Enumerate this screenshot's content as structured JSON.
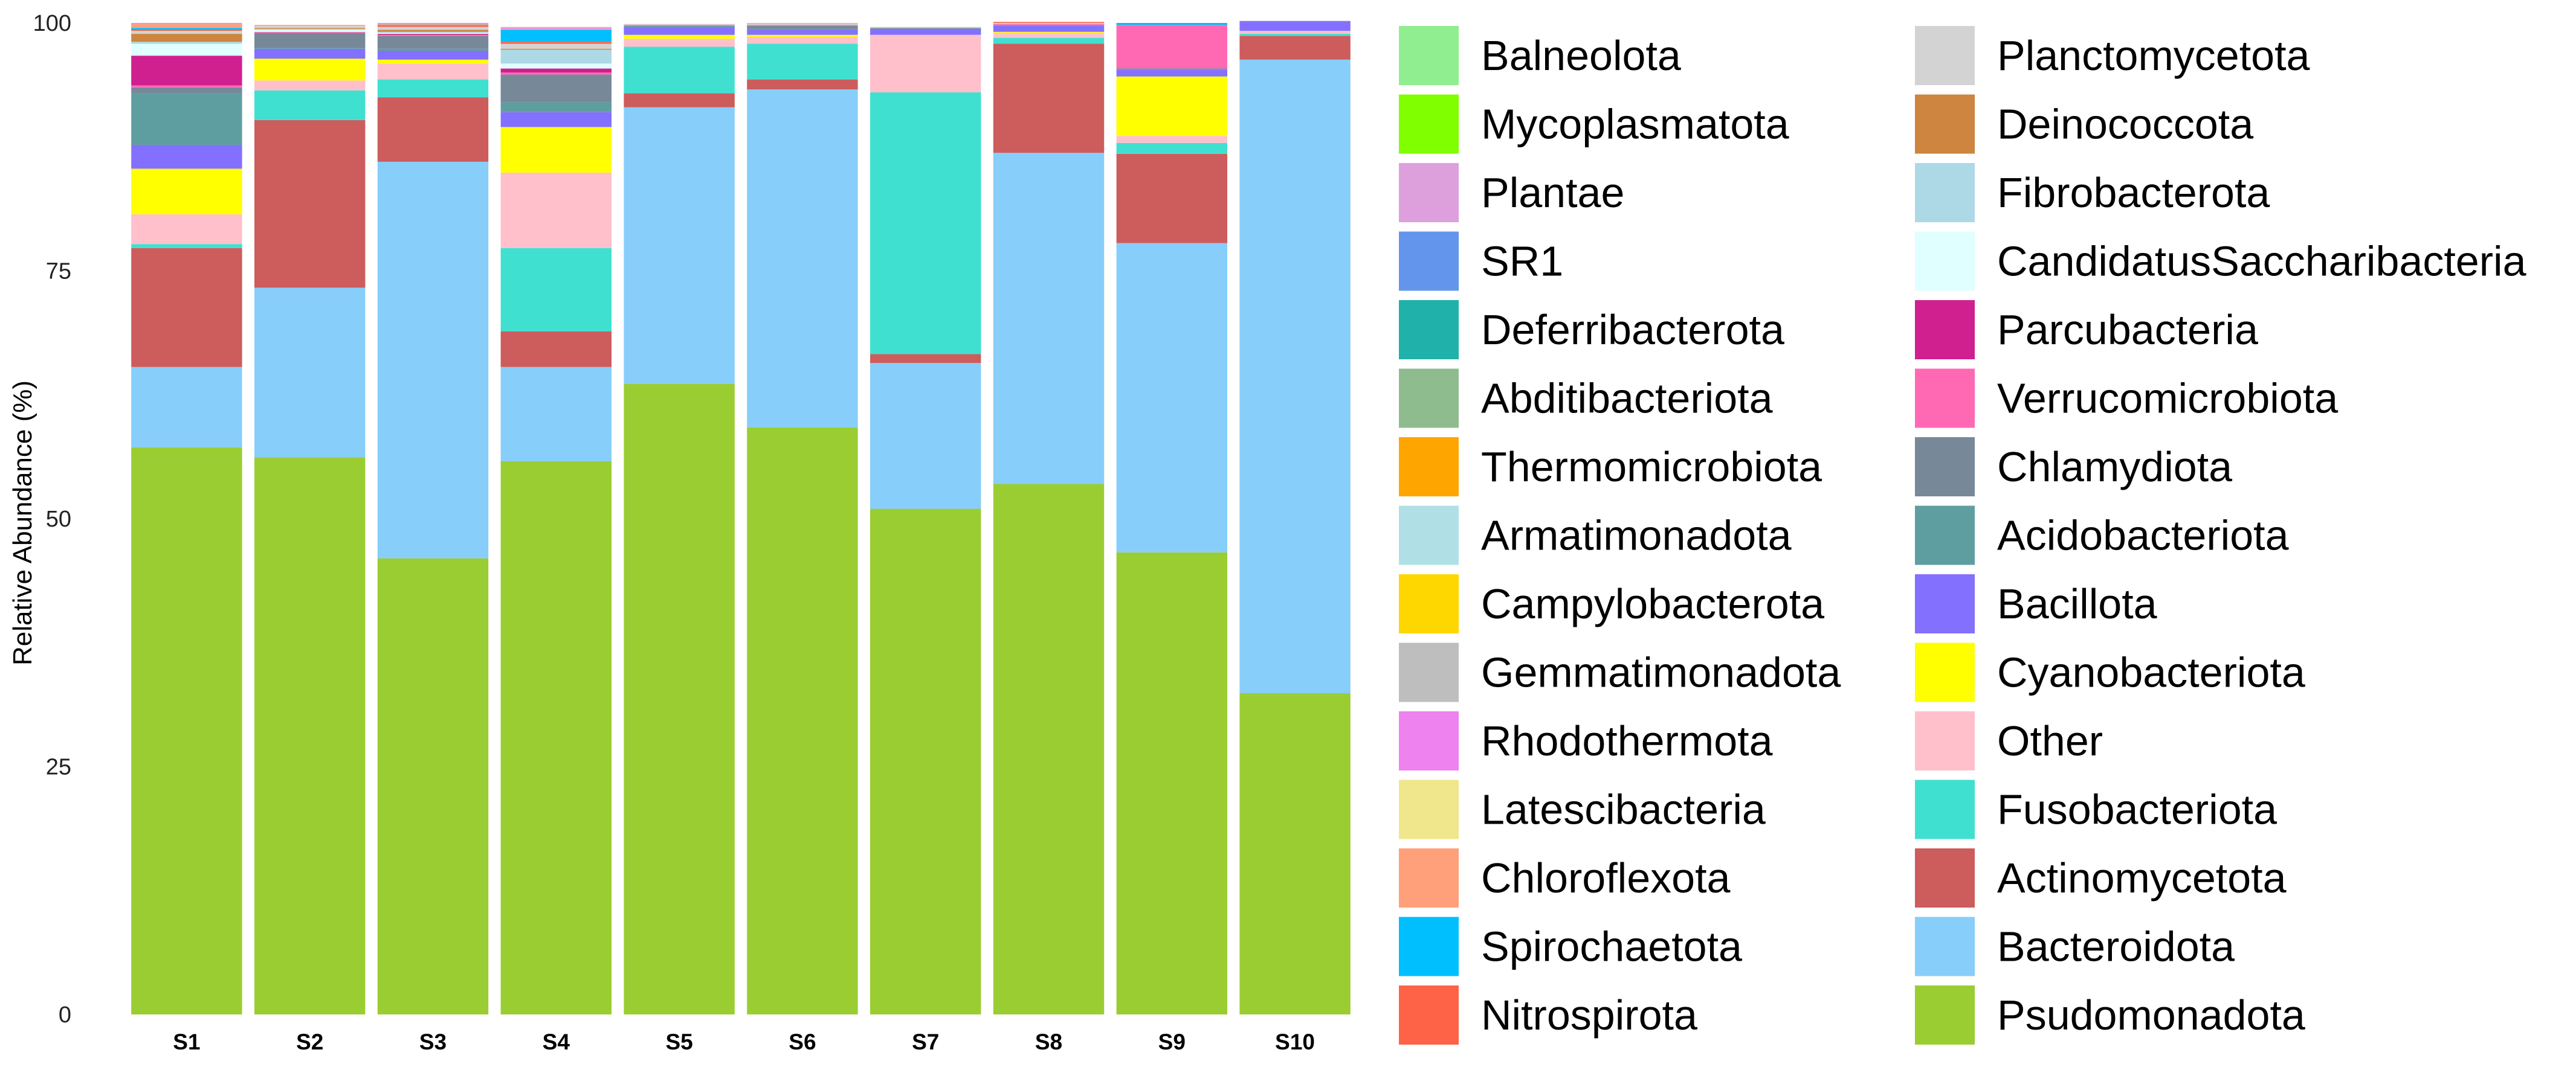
{
  "chart_data": {
    "type": "bar",
    "stacked": true,
    "title": "",
    "xlabel": "",
    "ylabel": "Relative Abundance (%)",
    "ylim": [
      0,
      100
    ],
    "yticks": [
      0,
      25,
      50,
      75,
      100
    ],
    "grid": false,
    "legend_position": "right",
    "categories": [
      "S1",
      "S2",
      "S3",
      "S4",
      "S5",
      "S6",
      "S7",
      "S8",
      "S9",
      "S10"
    ],
    "series": [
      {
        "name": "Psudomonadota",
        "color": "#9ACD32",
        "values": [
          57.2,
          56.2,
          46.0,
          55.8,
          63.6,
          59.2,
          51.0,
          53.5,
          46.6,
          32.4
        ]
      },
      {
        "name": "Bacteroidota",
        "color": "#87CEFA",
        "values": [
          8.1,
          17.1,
          40.0,
          9.5,
          27.9,
          34.1,
          14.7,
          33.4,
          31.2,
          63.9
        ]
      },
      {
        "name": "Actinomycetota",
        "color": "#CD5C5C",
        "values": [
          12.0,
          16.9,
          6.5,
          3.6,
          1.4,
          1.0,
          0.9,
          11.0,
          9.0,
          2.4
        ]
      },
      {
        "name": "Fusobacteriota",
        "color": "#40E0D0",
        "values": [
          0.4,
          3.0,
          1.8,
          8.4,
          4.7,
          3.6,
          26.4,
          0.6,
          1.1,
          0.2
        ]
      },
      {
        "name": "Other",
        "color": "#FFC0CB",
        "values": [
          3.0,
          1.0,
          1.6,
          7.6,
          0.8,
          0.7,
          5.8,
          0.5,
          0.7,
          0.3
        ]
      },
      {
        "name": "Cyanobacteriota",
        "color": "#FFFF00",
        "values": [
          4.6,
          2.2,
          0.4,
          4.6,
          0.4,
          0.2,
          0.0,
          0.1,
          6.0,
          0.0
        ]
      },
      {
        "name": "Bacillota",
        "color": "#8470FF",
        "values": [
          2.4,
          1.0,
          0.9,
          1.5,
          0.8,
          0.5,
          0.6,
          0.6,
          0.7,
          1.0
        ]
      },
      {
        "name": "Acidobacteriota",
        "color": "#5F9EA0",
        "values": [
          5.2,
          0.1,
          0.2,
          1.0,
          0.1,
          0.1,
          0.0,
          0.1,
          0.1,
          0.0
        ]
      },
      {
        "name": "Chlamydiota",
        "color": "#778899",
        "values": [
          0.6,
          1.5,
          1.3,
          2.8,
          0.0,
          0.3,
          0.1,
          0.0,
          0.0,
          0.0
        ]
      },
      {
        "name": "Verrucomicrobiota",
        "color": "#FF69B4",
        "values": [
          0.2,
          0.1,
          0.1,
          0.2,
          0.1,
          0.1,
          0.0,
          0.1,
          4.4,
          0.0
        ]
      },
      {
        "name": "Parcubacteria",
        "color": "#D02090",
        "values": [
          3.0,
          0.0,
          0.1,
          0.4,
          0.0,
          0.0,
          0.0,
          0.0,
          0.0,
          0.0
        ]
      },
      {
        "name": "CandidatusSaccharibacteria",
        "color": "#E0FFFF",
        "values": [
          1.2,
          0.2,
          0.1,
          0.5,
          0.0,
          0.0,
          0.0,
          0.0,
          0.0,
          0.0
        ]
      },
      {
        "name": "Fibrobacterota",
        "color": "#ADD8E6",
        "values": [
          0.2,
          0.1,
          0.1,
          1.4,
          0.0,
          0.0,
          0.0,
          0.0,
          0.0,
          0.0
        ]
      },
      {
        "name": "Deinococcota",
        "color": "#CD853F",
        "values": [
          0.8,
          0.1,
          0.2,
          0.1,
          0.0,
          0.0,
          0.0,
          0.0,
          0.0,
          0.0
        ]
      },
      {
        "name": "Planctomycetota",
        "color": "#D3D3D3",
        "values": [
          0.3,
          0.2,
          0.3,
          0.5,
          0.1,
          0.1,
          0.1,
          0.1,
          0.0,
          0.0
        ]
      },
      {
        "name": "Nitrospirota",
        "color": "#FF6347",
        "values": [
          0.1,
          0.0,
          0.1,
          0.2,
          0.0,
          0.0,
          0.0,
          0.1,
          0.0,
          0.0
        ]
      },
      {
        "name": "Spirochaetota",
        "color": "#00BFFF",
        "values": [
          0.2,
          0.0,
          0.1,
          1.2,
          0.0,
          0.0,
          0.0,
          0.0,
          0.2,
          0.0
        ]
      },
      {
        "name": "Chloroflexota",
        "color": "#FFA07A",
        "values": [
          0.4,
          0.1,
          0.1,
          0.1,
          0.0,
          0.0,
          0.0,
          0.0,
          0.0,
          0.0
        ]
      },
      {
        "name": "Latescibacteria",
        "color": "#F0E68C",
        "values": [
          0.0,
          0.0,
          0.0,
          0.0,
          0.0,
          0.0,
          0.0,
          0.0,
          0.0,
          0.0
        ]
      },
      {
        "name": "Rhodothermota",
        "color": "#EE82EE",
        "values": [
          0.1,
          0.0,
          0.1,
          0.1,
          0.0,
          0.0,
          0.0,
          0.0,
          0.0,
          0.0
        ]
      },
      {
        "name": "Gemmatimonadota",
        "color": "#BEBEBE",
        "values": [
          0.0,
          0.0,
          0.0,
          0.1,
          0.0,
          0.1,
          0.0,
          0.0,
          0.0,
          0.0
        ]
      },
      {
        "name": "Campylobacterota",
        "color": "#FFD700",
        "values": [
          0.0,
          0.0,
          0.0,
          0.0,
          0.0,
          0.0,
          0.0,
          0.0,
          0.0,
          0.0
        ]
      },
      {
        "name": "Armatimonadota",
        "color": "#B0E0E6",
        "values": [
          0.0,
          0.0,
          0.0,
          0.0,
          0.0,
          0.0,
          0.0,
          0.0,
          0.0,
          0.0
        ]
      },
      {
        "name": "Thermomicrobiota",
        "color": "#FFA500",
        "values": [
          0.0,
          0.0,
          0.0,
          0.0,
          0.0,
          0.0,
          0.0,
          0.0,
          0.0,
          0.0
        ]
      },
      {
        "name": "Abditibacteriota",
        "color": "#8FBC8F",
        "values": [
          0.0,
          0.0,
          0.0,
          0.0,
          0.0,
          0.0,
          0.0,
          0.0,
          0.0,
          0.0
        ]
      },
      {
        "name": "Deferribacterota",
        "color": "#20B2AA",
        "values": [
          0.0,
          0.0,
          0.0,
          0.0,
          0.0,
          0.0,
          0.0,
          0.0,
          0.0,
          0.0
        ]
      },
      {
        "name": "SR1",
        "color": "#6495ED",
        "values": [
          0.0,
          0.0,
          0.0,
          0.0,
          0.0,
          0.0,
          0.0,
          0.0,
          0.0,
          0.0
        ]
      },
      {
        "name": "Plantae",
        "color": "#DDA0DD",
        "values": [
          0.0,
          0.0,
          0.0,
          0.0,
          0.0,
          0.0,
          0.0,
          0.0,
          0.0,
          0.0
        ]
      },
      {
        "name": "Mycoplasmatota",
        "color": "#7FFF00",
        "values": [
          0.0,
          0.0,
          0.0,
          0.0,
          0.0,
          0.0,
          0.0,
          0.0,
          0.0,
          0.0
        ]
      },
      {
        "name": "Balneolota",
        "color": "#90EE90",
        "values": [
          0.0,
          0.0,
          0.0,
          0.0,
          0.0,
          0.0,
          0.0,
          0.0,
          0.0,
          0.0
        ]
      }
    ],
    "legend": {
      "columns": [
        [
          "Balneolota",
          "Mycoplasmatota",
          "Plantae",
          "SR1",
          "Deferribacterota",
          "Abditibacteriota",
          "Thermomicrobiota",
          "Armatimonadota",
          "Campylobacterota",
          "Gemmatimonadota",
          "Rhodothermota",
          "Latescibacteria",
          "Chloroflexota",
          "Spirochaetota",
          "Nitrospirota"
        ],
        [
          "Planctomycetota",
          "Deinococcota",
          "Fibrobacterota",
          "CandidatusSaccharibacteria",
          "Parcubacteria",
          "Verrucomicrobiota",
          "Chlamydiota",
          "Acidobacteriota",
          "Bacillota",
          "Cyanobacteriota",
          "Other",
          "Fusobacteriota",
          "Actinomycetota",
          "Bacteroidota",
          "Psudomonadota"
        ]
      ]
    }
  }
}
